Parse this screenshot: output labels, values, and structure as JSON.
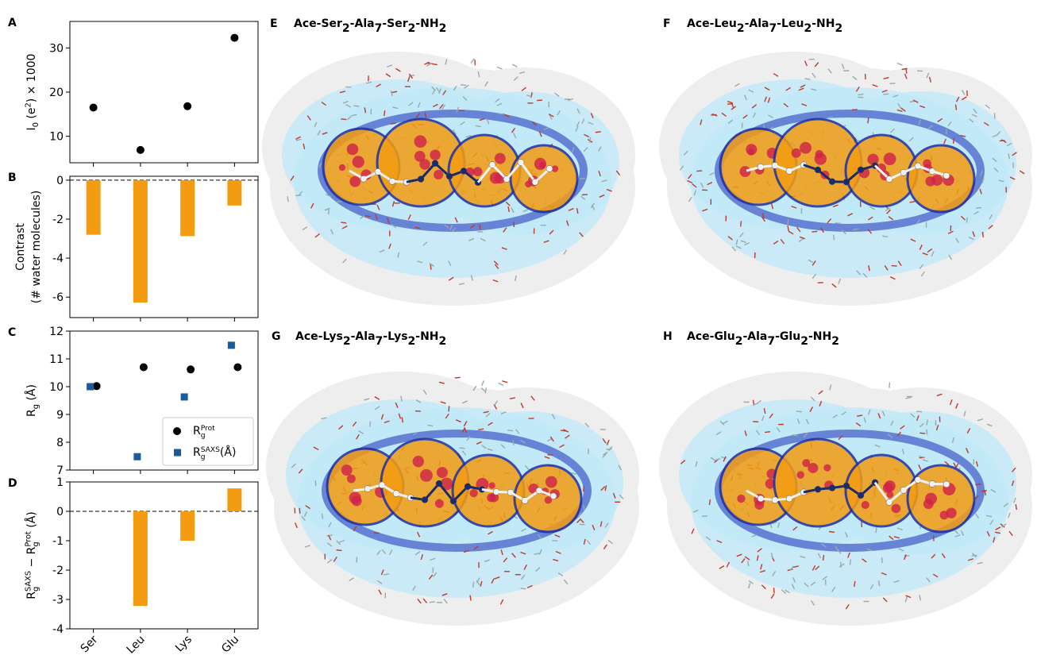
{
  "chart_data": [
    {
      "type": "scatter",
      "label": "A",
      "ylabel": [
        [
          {
            "t": "I"
          },
          {
            "t": "0",
            "s": "sub"
          },
          {
            "t": " (e"
          },
          {
            "t": "2",
            "s": "sup"
          },
          {
            "t": ") × 1000"
          }
        ]
      ],
      "values": [
        16.5,
        6.9,
        16.8,
        32.3
      ],
      "color": "#000000",
      "marker": "circle",
      "ylim": [
        4,
        36
      ],
      "yticks": [
        10,
        20,
        30
      ]
    },
    {
      "type": "bar",
      "label": "B",
      "ylabel": [
        [
          {
            "t": "Contrast"
          }
        ],
        [
          {
            "t": "(# water molecules)"
          }
        ]
      ],
      "values": [
        -2.8,
        -6.28,
        -2.87,
        -1.3
      ],
      "color": "#f39c12",
      "ylim": [
        -7.05,
        0.2
      ],
      "yticks": [
        -6,
        -4,
        -2,
        0
      ],
      "hline": 0
    },
    {
      "type": "scatter",
      "label": "C",
      "ylabel": [
        [
          {
            "t": "R"
          },
          {
            "t": "g",
            "s": "sub"
          },
          {
            "t": " (Å)"
          }
        ]
      ],
      "series": [
        {
          "name": [
            {
              "t": "R"
            },
            {
              "t": "g",
              "s": "sub"
            },
            {
              "t": "Prot",
              "s": "sup"
            }
          ],
          "color": "#000000",
          "marker": "circle",
          "values": [
            10.02,
            10.7,
            10.62,
            10.7
          ]
        },
        {
          "name": [
            {
              "t": "R"
            },
            {
              "t": "g",
              "s": "sub"
            },
            {
              "t": "SAXS",
              "s": "sup"
            },
            {
              "t": "(Å)"
            }
          ],
          "color": "#1a5a9e",
          "marker": "square",
          "values": [
            10.0,
            7.48,
            9.63,
            11.49
          ]
        }
      ],
      "ylim": [
        7,
        12
      ],
      "yticks": [
        7,
        8,
        9,
        10,
        11,
        12
      ],
      "legend": "lower right"
    },
    {
      "type": "bar",
      "label": "D",
      "ylabel": [
        [
          {
            "t": "R"
          },
          {
            "t": "g",
            "s": "sub"
          },
          {
            "t": "SAXS",
            "s": "sup"
          },
          {
            "t": " − R"
          },
          {
            "t": "g",
            "s": "sub"
          },
          {
            "t": "Prot",
            "s": "sup"
          },
          {
            "t": " (Å)"
          }
        ]
      ],
      "categories": [
        "Ser",
        "Leu",
        "Lys",
        "Glu"
      ],
      "values": [
        0,
        -3.22,
        -1.0,
        0.78
      ],
      "color": "#f39c12",
      "ylim": [
        -4,
        1
      ],
      "yticks": [
        -4,
        -3,
        -2,
        -1,
        0,
        1
      ],
      "hline": 0
    }
  ],
  "images": [
    {
      "label": "E",
      "title": [
        {
          "t": "Ace-Ser"
        },
        {
          "t": "2",
          "s": "sub"
        },
        {
          "t": "-Ala"
        },
        {
          "t": "7",
          "s": "sub"
        },
        {
          "t": "-Ser"
        },
        {
          "t": "2",
          "s": "sub"
        },
        {
          "t": "-NH"
        },
        {
          "t": "2",
          "s": "sub"
        }
      ]
    },
    {
      "label": "F",
      "title": [
        {
          "t": "Ace-Leu"
        },
        {
          "t": "2",
          "s": "sub"
        },
        {
          "t": "-Ala"
        },
        {
          "t": "7",
          "s": "sub"
        },
        {
          "t": "-Leu"
        },
        {
          "t": "2",
          "s": "sub"
        },
        {
          "t": "-NH"
        },
        {
          "t": "2",
          "s": "sub"
        }
      ]
    },
    {
      "label": "G",
      "title": [
        {
          "t": "Ace-Lys"
        },
        {
          "t": "2",
          "s": "sub"
        },
        {
          "t": "-Ala"
        },
        {
          "t": "7",
          "s": "sub"
        },
        {
          "t": "-Lys"
        },
        {
          "t": "2",
          "s": "sub"
        },
        {
          "t": "-NH"
        },
        {
          "t": "2",
          "s": "sub"
        }
      ]
    },
    {
      "label": "H",
      "title": [
        {
          "t": "Ace-Glu"
        },
        {
          "t": "2",
          "s": "sub"
        },
        {
          "t": "-Ala"
        },
        {
          "t": "7",
          "s": "sub"
        },
        {
          "t": "-Glu"
        },
        {
          "t": "2",
          "s": "sub"
        },
        {
          "t": "-NH"
        },
        {
          "t": "2",
          "s": "sub"
        }
      ]
    }
  ]
}
